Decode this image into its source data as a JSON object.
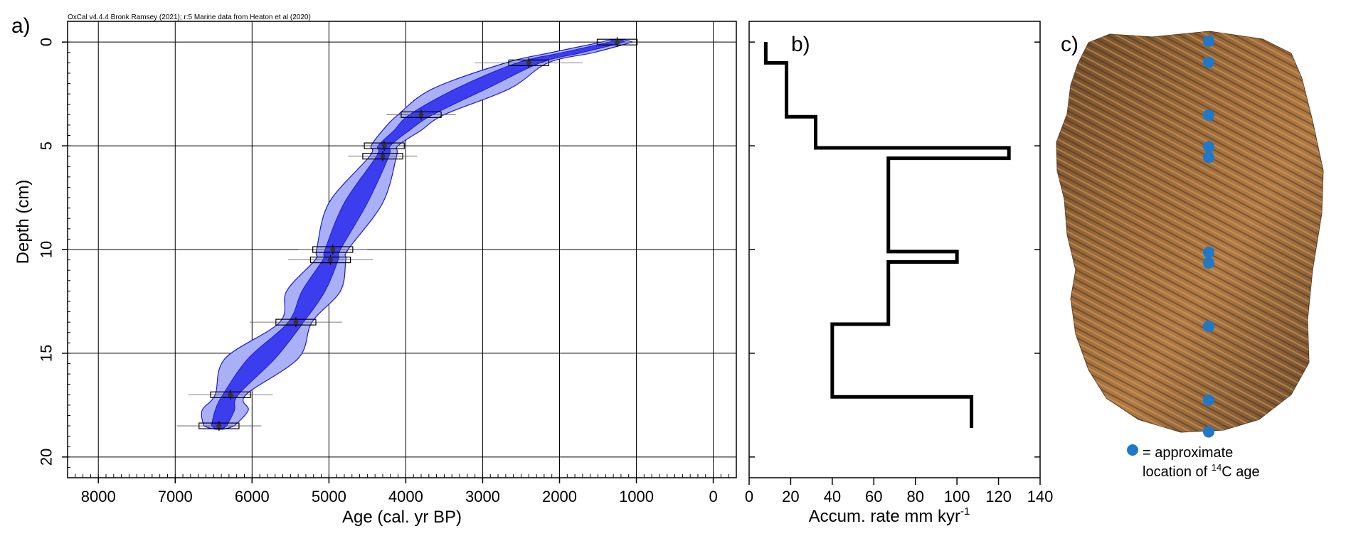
{
  "panels": {
    "a": {
      "letter": "a)",
      "credit": "OxCal v4.4.4 Bronk Ramsey (2021); r:5 Marine data from Heaton et al (2020)"
    },
    "b": {
      "letter": "b)"
    },
    "c": {
      "letter": "c)",
      "legend_line1": "= approximate",
      "legend_line2_pre": "location of ",
      "legend_sup": "14",
      "legend_line2_post": "C age"
    }
  },
  "colors": {
    "envelope_outer": "#aab0f5",
    "envelope_inner": "#3d3df0",
    "envelope_edge": "#1a1acc",
    "grid": "#000000",
    "dots": "#1f78c8",
    "core_base": "#7a5a35"
  },
  "chart_data": [
    {
      "type": "area",
      "panel": "a",
      "xlabel": "Age (cal. yr BP)",
      "ylabel": "Depth (cm)",
      "xlim": [
        8400,
        -300
      ],
      "ylim": [
        21,
        -1
      ],
      "x_ticks": [
        8000,
        7000,
        6000,
        5000,
        4000,
        3000,
        2000,
        1000,
        0
      ],
      "y_ticks": [
        0,
        5,
        10,
        15,
        20
      ],
      "grid": true,
      "depths": [
        0,
        1,
        3.5,
        5,
        5.5,
        10,
        10.5,
        13.5,
        17,
        18.5
      ],
      "median_age": [
        1250,
        2400,
        3800,
        4280,
        4300,
        4950,
        4980,
        5430,
        6280,
        6430
      ],
      "inner_young": [
        1150,
        2250,
        3650,
        4200,
        4220,
        4850,
        4880,
        5330,
        6180,
        6330
      ],
      "inner_old": [
        1350,
        2550,
        3950,
        4360,
        4380,
        5050,
        5080,
        5530,
        6380,
        6530
      ],
      "outer_young": [
        1050,
        2150,
        3500,
        4100,
        4120,
        4750,
        4780,
        5220,
        6080,
        6230
      ],
      "outer_old": [
        1450,
        2700,
        4100,
        4450,
        4470,
        5160,
        5180,
        5640,
        6480,
        6630
      ],
      "mid_depths": [
        0.5,
        2.25,
        4.25,
        7.75,
        12,
        15.25,
        17.75
      ],
      "mid_inner_young": [
        1700,
        2950,
        3950,
        4500,
        5050,
        5700,
        6230
      ],
      "mid_inner_old": [
        1950,
        3350,
        4150,
        4800,
        5350,
        6050,
        6480
      ],
      "mid_outer_young": [
        1550,
        2650,
        3800,
        4300,
        4850,
        5400,
        6050
      ],
      "mid_outer_old": [
        2100,
        3650,
        4300,
        5000,
        5550,
        6350,
        6650
      ],
      "errors": [
        150,
        700,
        450,
        250,
        450,
        450,
        550,
        600,
        550,
        550
      ]
    },
    {
      "type": "line",
      "panel": "b",
      "xlabel": "Accum. rate mm kyr",
      "xlabel_sup": "-1",
      "xlim": [
        0,
        140
      ],
      "ylim": [
        21,
        -1
      ],
      "x_ticks": [
        0,
        20,
        40,
        60,
        80,
        100,
        120,
        140
      ],
      "y_ticks": [
        0,
        5,
        10,
        15,
        20
      ],
      "step_path": [
        [
          8,
          0
        ],
        [
          8,
          1
        ],
        [
          18,
          1
        ],
        [
          18,
          3.6
        ],
        [
          32,
          3.6
        ],
        [
          32,
          5.1
        ],
        [
          125,
          5.1
        ],
        [
          125,
          5.6
        ],
        [
          67,
          5.6
        ],
        [
          67,
          10.1
        ],
        [
          100,
          10.1
        ],
        [
          100,
          10.6
        ],
        [
          67,
          10.6
        ],
        [
          67,
          13.6
        ],
        [
          40,
          13.6
        ],
        [
          40,
          17.1
        ],
        [
          107,
          17.1
        ],
        [
          107,
          18.6
        ]
      ]
    }
  ],
  "samples": {
    "depths": [
      0,
      1,
      3.5,
      5,
      5.5,
      10,
      10.5,
      13.5,
      17,
      18.5
    ]
  }
}
